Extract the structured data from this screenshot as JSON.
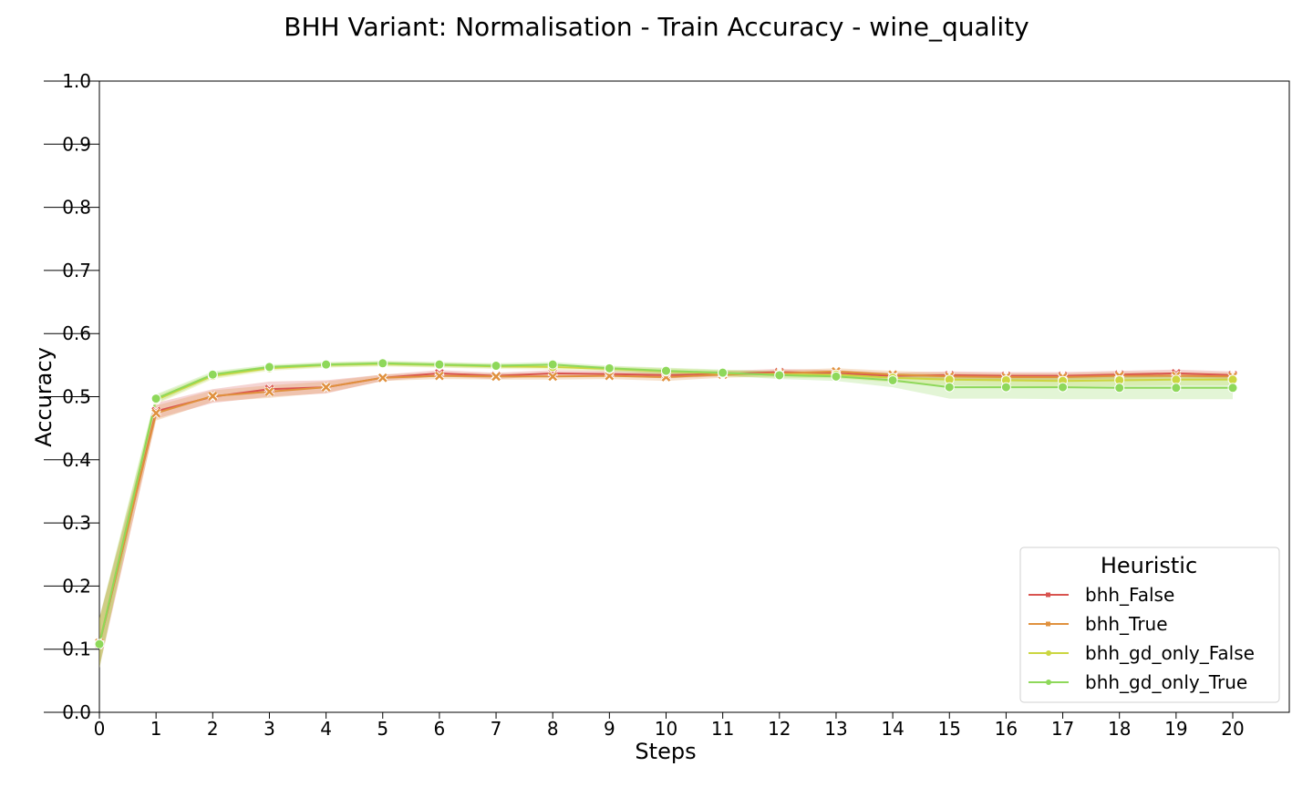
{
  "chart_data": {
    "type": "line",
    "title": "BHH Variant: Normalisation - Train Accuracy - wine_quality",
    "xlabel": "Steps",
    "ylabel": "Accuracy",
    "xlim": [
      0,
      21
    ],
    "ylim": [
      0,
      1.0
    ],
    "x": [
      0,
      1,
      2,
      3,
      4,
      5,
      6,
      7,
      8,
      9,
      10,
      11,
      12,
      13,
      14,
      15,
      16,
      17,
      18,
      19,
      20
    ],
    "x_ticks": [
      "0",
      "1",
      "2",
      "3",
      "4",
      "5",
      "6",
      "7",
      "8",
      "9",
      "10",
      "11",
      "12",
      "13",
      "14",
      "15",
      "16",
      "17",
      "18",
      "19",
      "20"
    ],
    "y_ticks": [
      "0.0",
      "0.1",
      "0.2",
      "0.3",
      "0.4",
      "0.5",
      "0.6",
      "0.7",
      "0.8",
      "0.9",
      "1.0"
    ],
    "grid": false,
    "legend": {
      "title": "Heuristic",
      "placement": "lower-right"
    },
    "series": [
      {
        "name": "bhh_False",
        "color": "#d9534f",
        "marker": "x",
        "values": [
          0.108,
          0.477,
          0.5,
          0.512,
          0.515,
          0.53,
          0.537,
          0.533,
          0.537,
          0.536,
          0.534,
          0.536,
          0.539,
          0.537,
          0.533,
          0.534,
          0.533,
          0.533,
          0.535,
          0.537,
          0.534
        ],
        "lower": [
          0.07,
          0.465,
          0.49,
          0.5,
          0.505,
          0.525,
          0.532,
          0.528,
          0.533,
          0.532,
          0.529,
          0.532,
          0.535,
          0.532,
          0.528,
          0.528,
          0.527,
          0.527,
          0.529,
          0.531,
          0.528
        ],
        "upper": [
          0.15,
          0.49,
          0.512,
          0.524,
          0.526,
          0.535,
          0.542,
          0.538,
          0.542,
          0.541,
          0.539,
          0.541,
          0.544,
          0.542,
          0.538,
          0.54,
          0.539,
          0.539,
          0.541,
          0.543,
          0.54
        ]
      },
      {
        "name": "bhh_True",
        "color": "#e0913e",
        "marker": "x",
        "values": [
          0.11,
          0.474,
          0.501,
          0.508,
          0.515,
          0.53,
          0.533,
          0.532,
          0.532,
          0.533,
          0.531,
          0.535,
          0.537,
          0.54,
          0.535,
          0.532,
          0.531,
          0.531,
          0.533,
          0.533,
          0.532
        ],
        "lower": [
          0.075,
          0.462,
          0.492,
          0.498,
          0.506,
          0.525,
          0.528,
          0.527,
          0.527,
          0.528,
          0.525,
          0.53,
          0.532,
          0.535,
          0.529,
          0.526,
          0.525,
          0.525,
          0.527,
          0.527,
          0.526
        ],
        "upper": [
          0.148,
          0.486,
          0.51,
          0.518,
          0.524,
          0.535,
          0.538,
          0.537,
          0.537,
          0.538,
          0.537,
          0.54,
          0.542,
          0.545,
          0.541,
          0.538,
          0.537,
          0.537,
          0.539,
          0.539,
          0.538
        ]
      },
      {
        "name": "bhh_gd_only_False",
        "color": "#cbd640",
        "marker": "o",
        "values": [
          0.108,
          0.495,
          0.533,
          0.545,
          0.55,
          0.552,
          0.55,
          0.548,
          0.547,
          0.544,
          0.54,
          0.537,
          0.535,
          0.535,
          0.53,
          0.527,
          0.526,
          0.525,
          0.526,
          0.527,
          0.527
        ],
        "lower": [
          0.07,
          0.488,
          0.528,
          0.541,
          0.546,
          0.548,
          0.546,
          0.544,
          0.543,
          0.54,
          0.535,
          0.532,
          0.53,
          0.529,
          0.523,
          0.518,
          0.517,
          0.516,
          0.517,
          0.518,
          0.518
        ],
        "upper": [
          0.148,
          0.502,
          0.538,
          0.549,
          0.554,
          0.556,
          0.554,
          0.552,
          0.551,
          0.548,
          0.545,
          0.542,
          0.54,
          0.541,
          0.537,
          0.536,
          0.535,
          0.534,
          0.535,
          0.536,
          0.536
        ]
      },
      {
        "name": "bhh_gd_only_True",
        "color": "#8ed85a",
        "marker": "o",
        "values": [
          0.108,
          0.497,
          0.535,
          0.547,
          0.551,
          0.553,
          0.551,
          0.549,
          0.551,
          0.545,
          0.541,
          0.538,
          0.534,
          0.532,
          0.526,
          0.515,
          0.515,
          0.515,
          0.514,
          0.514,
          0.514
        ],
        "lower": [
          0.07,
          0.49,
          0.53,
          0.543,
          0.547,
          0.549,
          0.547,
          0.545,
          0.547,
          0.541,
          0.536,
          0.533,
          0.528,
          0.525,
          0.515,
          0.497,
          0.497,
          0.496,
          0.496,
          0.496,
          0.496
        ],
        "upper": [
          0.15,
          0.504,
          0.54,
          0.551,
          0.555,
          0.557,
          0.555,
          0.553,
          0.555,
          0.549,
          0.546,
          0.543,
          0.54,
          0.539,
          0.537,
          0.533,
          0.533,
          0.534,
          0.532,
          0.532,
          0.532
        ]
      }
    ]
  }
}
